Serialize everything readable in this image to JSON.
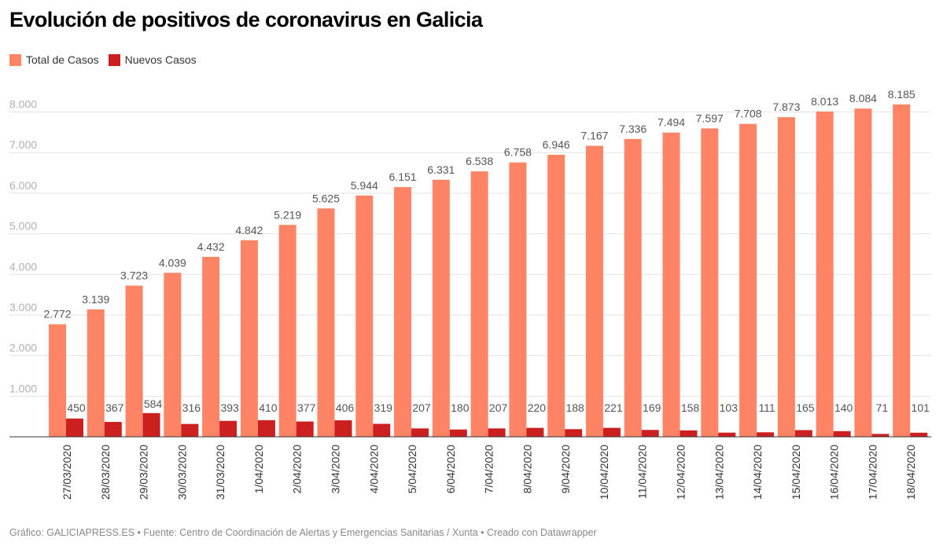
{
  "title": "Evolución de positivos de coronavirus en Galicia",
  "footer": "Gráfico: GALICIAPRESS.ES • Fuente: Centro de Coordinación de Alertas y Emergencias Sanitarias / Xunta • Creado con Datawrapper",
  "colors": {
    "total": "#ff8466",
    "nuevos": "#cc2020"
  },
  "chart_data": {
    "type": "bar",
    "categories": [
      "27/03/2020",
      "28/03/2020",
      "29/03/2020",
      "30/03/2020",
      "31/03/2020",
      "1/04/2020",
      "2/04/2020",
      "3/04/2020",
      "4/04/2020",
      "5/04/2020",
      "6/04/2020",
      "7/04/2020",
      "8/04/2020",
      "9/04/2020",
      "10/04/2020",
      "11/04/2020",
      "12/04/2020",
      "13/04/2020",
      "14/04/2020",
      "15/04/2020",
      "16/04/2020",
      "17/04/2020",
      "18/04/2020"
    ],
    "series": [
      {
        "name": "Total de Casos",
        "values": [
          2772,
          3139,
          3723,
          4039,
          4432,
          4842,
          5219,
          5625,
          5944,
          6151,
          6331,
          6538,
          6758,
          6946,
          7167,
          7336,
          7494,
          7597,
          7708,
          7873,
          8013,
          8084,
          8185
        ],
        "labels": [
          "2.772",
          "3.139",
          "3.723",
          "4.039",
          "4.432",
          "4.842",
          "5.219",
          "5.625",
          "5.944",
          "6.151",
          "6.331",
          "6.538",
          "6.758",
          "6.946",
          "7.167",
          "7.336",
          "7.494",
          "7.597",
          "7.708",
          "7.873",
          "8.013",
          "8.084",
          "8.185"
        ]
      },
      {
        "name": "Nuevos Casos",
        "values": [
          450,
          367,
          584,
          316,
          393,
          410,
          377,
          406,
          319,
          207,
          180,
          207,
          220,
          188,
          221,
          169,
          158,
          103,
          111,
          165,
          140,
          71,
          101
        ],
        "labels": [
          "450",
          "367",
          "584",
          "316",
          "393",
          "410",
          "377",
          "406",
          "319",
          "207",
          "180",
          "207",
          "220",
          "188",
          "221",
          "169",
          "158",
          "103",
          "111",
          "165",
          "140",
          "71",
          "101"
        ]
      }
    ],
    "yticks": [
      1000,
      2000,
      3000,
      4000,
      5000,
      6000,
      7000,
      8000
    ],
    "ytick_labels": [
      "1.000",
      "2.000",
      "3.000",
      "4.000",
      "5.000",
      "6.000",
      "7.000",
      "8.000"
    ],
    "ylim": [
      0,
      8185
    ],
    "grid": true,
    "legend": "top-left"
  }
}
